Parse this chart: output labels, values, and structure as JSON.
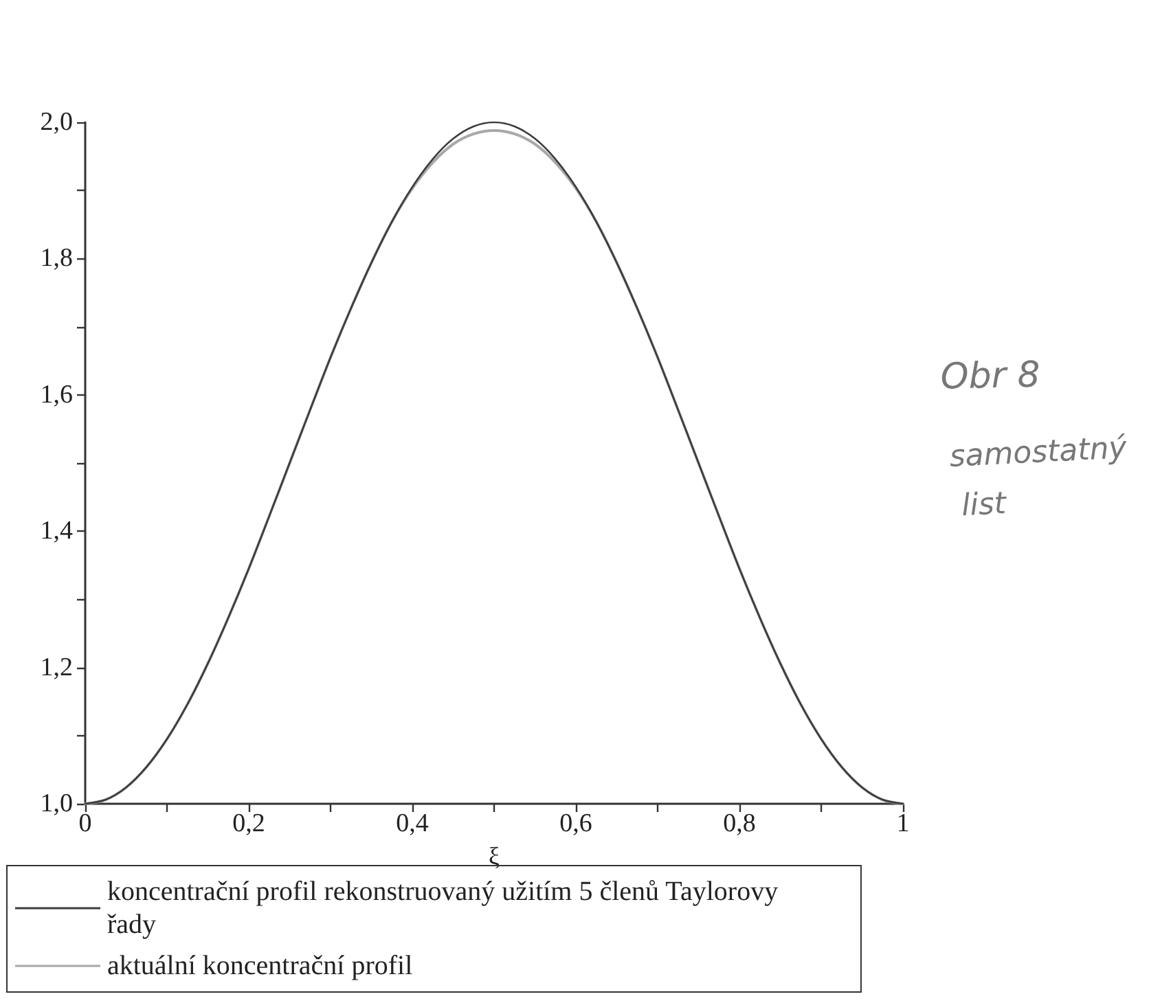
{
  "chart_data": {
    "type": "line",
    "xlabel": "ξ",
    "x": [
      0,
      0.025,
      0.05,
      0.075,
      0.1,
      0.125,
      0.15,
      0.175,
      0.2,
      0.225,
      0.25,
      0.275,
      0.3,
      0.325,
      0.35,
      0.375,
      0.4,
      0.425,
      0.45,
      0.475,
      0.5,
      0.525,
      0.55,
      0.575,
      0.6,
      0.625,
      0.65,
      0.675,
      0.7,
      0.725,
      0.75,
      0.775,
      0.8,
      0.825,
      0.85,
      0.875,
      0.9,
      0.925,
      0.95,
      0.975,
      1
    ],
    "series": [
      {
        "name": "koncentrační profil rekonstruovaný užitím 5 členů Taylorovy řady",
        "color": "#3c3c3c",
        "values": [
          1.0,
          1.006,
          1.024,
          1.054,
          1.095,
          1.146,
          1.206,
          1.273,
          1.345,
          1.422,
          1.5,
          1.578,
          1.655,
          1.727,
          1.794,
          1.854,
          1.905,
          1.946,
          1.976,
          1.994,
          2.0,
          1.994,
          1.976,
          1.946,
          1.905,
          1.854,
          1.794,
          1.727,
          1.655,
          1.578,
          1.5,
          1.422,
          1.345,
          1.273,
          1.206,
          1.146,
          1.095,
          1.054,
          1.024,
          1.006,
          1.0
        ]
      },
      {
        "name": "aktuální koncentrační profil",
        "color": "#a8a8a8",
        "values": [
          1.0,
          1.006,
          1.024,
          1.054,
          1.095,
          1.146,
          1.206,
          1.273,
          1.345,
          1.422,
          1.5,
          1.578,
          1.655,
          1.727,
          1.794,
          1.854,
          1.903,
          1.941,
          1.968,
          1.983,
          1.988,
          1.983,
          1.968,
          1.941,
          1.903,
          1.854,
          1.794,
          1.727,
          1.655,
          1.578,
          1.5,
          1.422,
          1.345,
          1.273,
          1.206,
          1.146,
          1.095,
          1.054,
          1.024,
          1.006,
          1.0
        ]
      }
    ],
    "xlim": [
      0,
      1
    ],
    "xticks": [
      0,
      {
        "value": 0.1,
        "label": null
      },
      {
        "value": 0.2,
        "label": "0,2"
      },
      {
        "value": 0.3,
        "label": null
      },
      {
        "value": 0.4,
        "label": "0,4"
      },
      {
        "value": 0.5,
        "label": null
      },
      {
        "value": 0.6,
        "label": "0,6"
      },
      {
        "value": 0.7,
        "label": null
      },
      {
        "value": 0.8,
        "label": "0,8"
      },
      {
        "value": 0.9,
        "label": null
      },
      1
    ],
    "ylim": [
      1,
      2
    ],
    "yticks": [
      {
        "value": 1,
        "label": "1,0"
      },
      {
        "value": 1.1,
        "label": null
      },
      {
        "value": 1.2,
        "label": "1,2"
      },
      {
        "value": 1.3,
        "label": null
      },
      {
        "value": 1.4,
        "label": "1,4"
      },
      {
        "value": 1.5,
        "label": null
      },
      {
        "value": 1.6,
        "label": "1,6"
      },
      {
        "value": 1.7,
        "label": null
      },
      {
        "value": 1.8,
        "label": "1,8"
      },
      {
        "value": 1.9,
        "label": null
      },
      {
        "value": 2,
        "label": "2,0"
      }
    ],
    "legend": "bottom",
    "marker": "none",
    "annotations": [
      "Obr 8",
      "samostatný list"
    ]
  }
}
